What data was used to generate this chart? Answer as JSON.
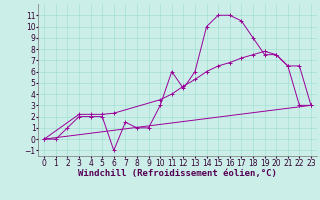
{
  "title": "",
  "xlabel": "Windchill (Refroidissement éolien,°C)",
  "ylabel": "",
  "xlim": [
    -0.5,
    23.5
  ],
  "ylim": [
    -1.5,
    12.0
  ],
  "xticks": [
    0,
    1,
    2,
    3,
    4,
    5,
    6,
    7,
    8,
    9,
    10,
    11,
    12,
    13,
    14,
    15,
    16,
    17,
    18,
    19,
    20,
    21,
    22,
    23
  ],
  "yticks": [
    -1,
    0,
    1,
    2,
    3,
    4,
    5,
    6,
    7,
    8,
    9,
    10,
    11
  ],
  "background_color": "#cceee8",
  "grid_color": "#99ddcc",
  "line_color": "#990099",
  "line1_x": [
    0,
    1,
    2,
    3,
    4,
    5,
    6,
    7,
    8,
    9,
    10,
    11,
    12,
    13,
    14,
    15,
    16,
    17,
    18,
    19,
    20,
    21,
    22,
    23
  ],
  "line1_y": [
    0,
    0,
    1,
    2,
    2,
    2,
    -1,
    1.5,
    1,
    1,
    3,
    6,
    4.5,
    6,
    10,
    11,
    11,
    10.5,
    9,
    7.5,
    7.5,
    6.5,
    3,
    3
  ],
  "line2_x": [
    0,
    3,
    4,
    5,
    6,
    10,
    11,
    12,
    13,
    14,
    15,
    16,
    17,
    18,
    19,
    20,
    21,
    22,
    23
  ],
  "line2_y": [
    0,
    2.2,
    2.2,
    2.2,
    2.3,
    3.5,
    4.0,
    4.7,
    5.3,
    6.0,
    6.5,
    6.8,
    7.2,
    7.5,
    7.8,
    7.5,
    6.5,
    6.5,
    3
  ],
  "line3_x": [
    0,
    23
  ],
  "line3_y": [
    0,
    3
  ],
  "fontsize_tick": 5.5,
  "fontsize_label": 6.5
}
